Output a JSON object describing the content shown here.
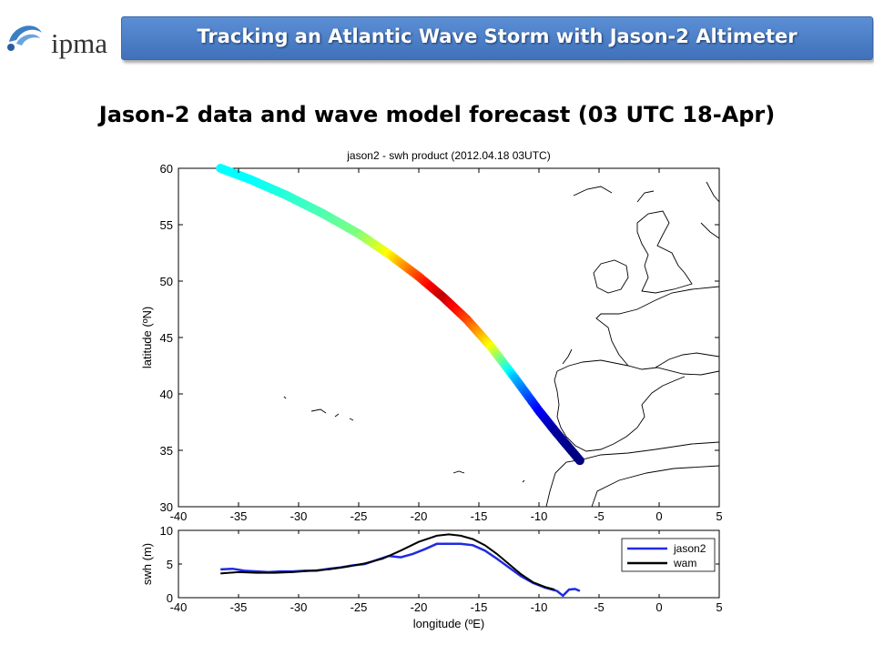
{
  "header": {
    "logo_text": "ipma",
    "banner_title": "Tracking an Atlantic Wave Storm with Jason-2 Altimeter"
  },
  "subtitle": "Jason-2 data and wave model forecast (03 UTC 18-Apr)",
  "colors": {
    "banner": "#4a7cc4",
    "jason2": "#1f2be0",
    "wam": "#000000"
  },
  "chart_data": [
    {
      "type": "scatter",
      "title": "jason2 - swh product (2012.04.18 03UTC)",
      "xlabel": "",
      "ylabel": "latitude (ºN)",
      "xlim": [
        -40,
        5
      ],
      "ylim": [
        30,
        60
      ],
      "xticks": [
        "-40",
        "-35",
        "-30",
        "-25",
        "-20",
        "-15",
        "-10",
        "-5",
        "0",
        "5"
      ],
      "yticks": [
        "30",
        "35",
        "40",
        "45",
        "50",
        "55",
        "60"
      ],
      "colormap": "jet",
      "track_points": [
        {
          "lon": -36.5,
          "lat": 60.0,
          "swh": 4.0
        },
        {
          "lon": -34.0,
          "lat": 59.0,
          "swh": 4.0
        },
        {
          "lon": -31.0,
          "lat": 57.6,
          "swh": 4.3
        },
        {
          "lon": -28.0,
          "lat": 56.0,
          "swh": 4.6
        },
        {
          "lon": -25.0,
          "lat": 54.2,
          "swh": 5.0
        },
        {
          "lon": -22.5,
          "lat": 52.4,
          "swh": 6.0
        },
        {
          "lon": -20.0,
          "lat": 50.4,
          "swh": 7.5
        },
        {
          "lon": -18.0,
          "lat": 48.6,
          "swh": 8.5
        },
        {
          "lon": -16.0,
          "lat": 46.6,
          "swh": 7.5
        },
        {
          "lon": -14.0,
          "lat": 44.2,
          "swh": 6.0
        },
        {
          "lon": -12.0,
          "lat": 41.4,
          "swh": 3.5
        },
        {
          "lon": -10.0,
          "lat": 38.5,
          "swh": 2.0
        },
        {
          "lon": -8.5,
          "lat": 36.5,
          "swh": 1.2
        },
        {
          "lon": -6.6,
          "lat": 34.1,
          "swh": 1.0
        }
      ]
    },
    {
      "type": "line",
      "title": "",
      "xlabel": "longitude (ºE)",
      "ylabel": "swh (m)",
      "xlim": [
        -40,
        5
      ],
      "ylim": [
        0,
        10
      ],
      "xticks": [
        "-40",
        "-35",
        "-30",
        "-25",
        "-20",
        "-15",
        "-10",
        "-5",
        "0",
        "5"
      ],
      "yticks": [
        "0",
        "5",
        "10"
      ],
      "legend_position": "top-right",
      "series": [
        {
          "name": "jason2",
          "color": "#1f2be0",
          "x": [
            -36.5,
            -35.5,
            -34.5,
            -33.5,
            -32.5,
            -31.5,
            -30.5,
            -29.5,
            -28.5,
            -27.5,
            -26.5,
            -25.5,
            -24.5,
            -23.5,
            -22.5,
            -21.5,
            -20.5,
            -19.5,
            -18.5,
            -17.5,
            -16.5,
            -15.5,
            -14.5,
            -13.5,
            -12.5,
            -11.5,
            -10.5,
            -9.5,
            -8.5,
            -8.0,
            -7.5,
            -7.0,
            -6.6
          ],
          "y": [
            4.2,
            4.3,
            4.0,
            3.9,
            3.8,
            3.9,
            3.9,
            4.0,
            4.0,
            4.3,
            4.5,
            4.8,
            5.0,
            5.6,
            6.2,
            6.0,
            6.5,
            7.2,
            8.0,
            8.0,
            8.0,
            7.8,
            7.0,
            5.8,
            4.5,
            3.2,
            2.2,
            1.5,
            1.0,
            0.3,
            1.2,
            1.3,
            1.0
          ]
        },
        {
          "name": "wam",
          "color": "#000000",
          "x": [
            -36.5,
            -35.0,
            -33.5,
            -32.0,
            -30.5,
            -29.0,
            -27.5,
            -26.0,
            -24.5,
            -23.0,
            -21.5,
            -20.0,
            -18.5,
            -17.5,
            -16.5,
            -15.5,
            -14.5,
            -13.5,
            -12.5,
            -11.5,
            -10.5,
            -9.5,
            -8.7
          ],
          "y": [
            3.6,
            3.8,
            3.7,
            3.7,
            3.8,
            4.0,
            4.2,
            4.6,
            5.1,
            5.8,
            7.0,
            8.3,
            9.2,
            9.4,
            9.2,
            8.7,
            7.8,
            6.5,
            5.0,
            3.5,
            2.3,
            1.6,
            1.2
          ]
        }
      ]
    }
  ]
}
